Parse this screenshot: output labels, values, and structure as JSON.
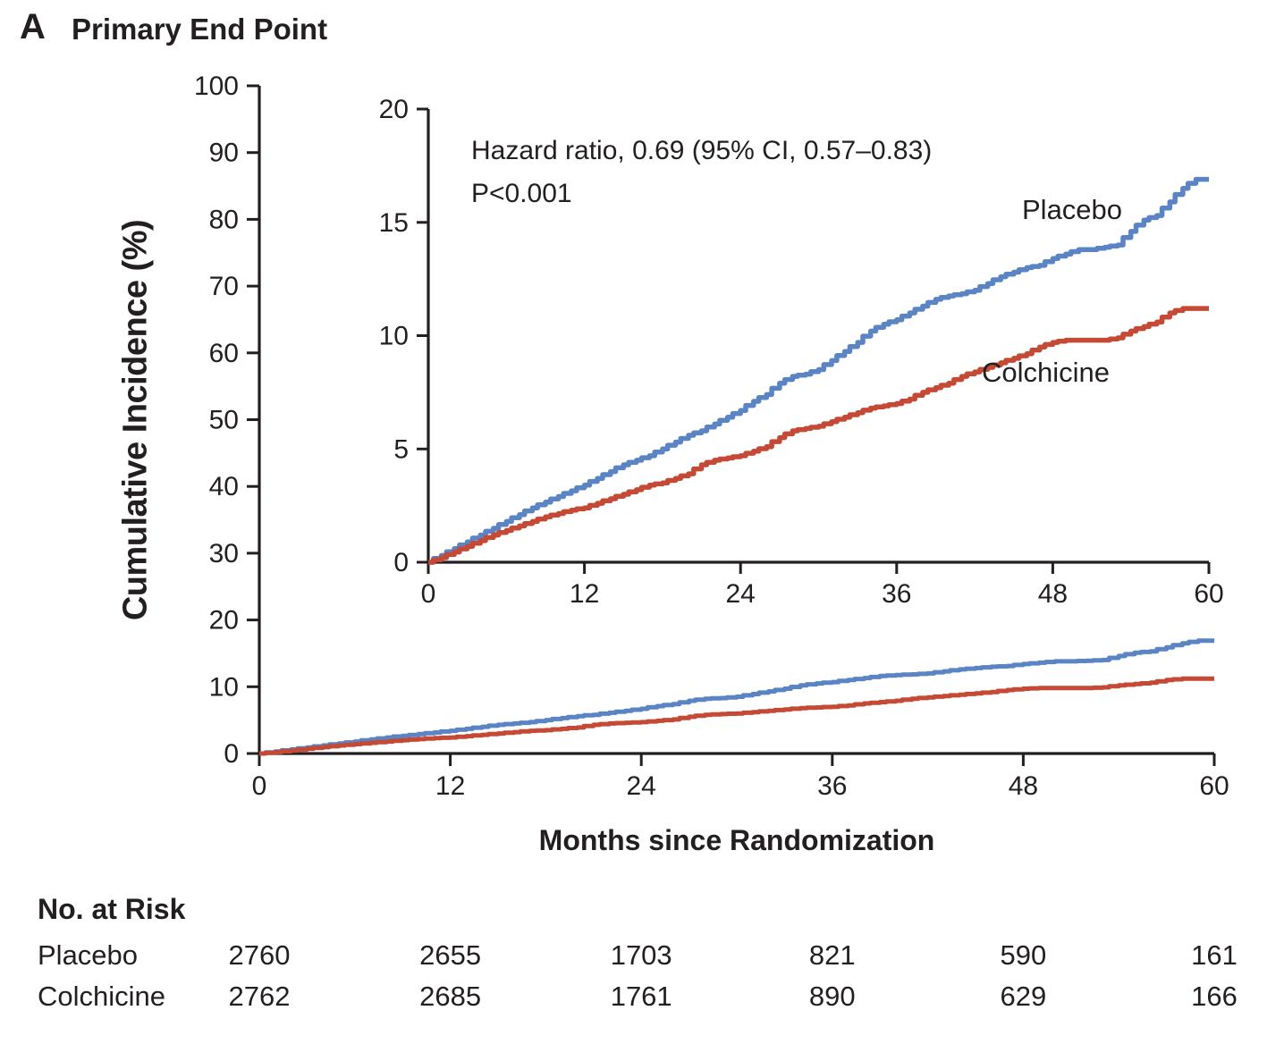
{
  "panel": {
    "label": "A",
    "title": "Primary End Point"
  },
  "colors": {
    "axis": "#231f20",
    "background": "#ffffff",
    "placebo": "#5a84c4",
    "colchicine": "#c44a35"
  },
  "risk_table": {
    "header": "No. at Risk",
    "months": [
      0,
      12,
      24,
      36,
      48,
      60
    ],
    "rows": [
      {
        "label": "Placebo",
        "values": [
          2760,
          2655,
          1703,
          821,
          590,
          161
        ]
      },
      {
        "label": "Colchicine",
        "values": [
          2762,
          2685,
          1761,
          890,
          629,
          166
        ]
      }
    ]
  },
  "chart_data": {
    "type": "line",
    "step": true,
    "title": "Primary End Point",
    "xlabel": "Months since Randomization",
    "ylabel": "Cumulative Incidence (%)",
    "legend_position": "inline-labels",
    "grid": false,
    "annotations": [
      "Hazard ratio, 0.69 (95% CI, 0.57–0.83)",
      "P<0.001"
    ],
    "main_axis": {
      "xlim": [
        0,
        60
      ],
      "ylim": [
        0,
        100
      ],
      "x_ticks": [
        0,
        12,
        24,
        36,
        48,
        60
      ],
      "y_ticks": [
        0,
        10,
        20,
        30,
        40,
        50,
        60,
        70,
        80,
        90,
        100
      ]
    },
    "inset_axis": {
      "xlim": [
        0,
        60
      ],
      "ylim": [
        0,
        20
      ],
      "x_ticks": [
        0,
        12,
        24,
        36,
        48,
        60
      ],
      "y_ticks": [
        0,
        5,
        10,
        15,
        20
      ]
    },
    "x_months": [
      0,
      1,
      2,
      3,
      4,
      5,
      6,
      7,
      8,
      9,
      10,
      11,
      12,
      13,
      14,
      15,
      16,
      17,
      18,
      19,
      20,
      21,
      22,
      23,
      24,
      25,
      26,
      27,
      28,
      29,
      30,
      31,
      32,
      33,
      34,
      35,
      36,
      37,
      38,
      39,
      40,
      41,
      42,
      43,
      44,
      45,
      46,
      47,
      48,
      49,
      50,
      51,
      52,
      53,
      54,
      55,
      56,
      57,
      58,
      59,
      60
    ],
    "series": [
      {
        "name": "Placebo",
        "color": "#5a84c4",
        "values": [
          0,
          0.3,
          0.6,
          0.9,
          1.2,
          1.5,
          1.8,
          2.1,
          2.4,
          2.65,
          2.9,
          3.15,
          3.4,
          3.7,
          4.0,
          4.3,
          4.5,
          4.7,
          5.0,
          5.3,
          5.6,
          5.8,
          6.1,
          6.4,
          6.7,
          7.1,
          7.4,
          7.9,
          8.2,
          8.3,
          8.5,
          8.9,
          9.3,
          9.7,
          10.2,
          10.5,
          10.7,
          11.0,
          11.3,
          11.6,
          11.75,
          11.85,
          12.0,
          12.3,
          12.6,
          12.8,
          13.0,
          13.1,
          13.4,
          13.6,
          13.8,
          13.8,
          13.9,
          14.0,
          14.6,
          15.1,
          15.3,
          15.9,
          16.5,
          16.9,
          16.9
        ]
      },
      {
        "name": "Colchicine",
        "color": "#c44a35",
        "values": [
          0,
          0.2,
          0.45,
          0.7,
          0.95,
          1.2,
          1.4,
          1.6,
          1.8,
          2.0,
          2.15,
          2.3,
          2.4,
          2.6,
          2.8,
          3.0,
          3.2,
          3.4,
          3.5,
          3.7,
          3.9,
          4.3,
          4.5,
          4.6,
          4.7,
          4.9,
          5.1,
          5.5,
          5.8,
          5.9,
          6.0,
          6.2,
          6.4,
          6.6,
          6.8,
          6.9,
          7.0,
          7.2,
          7.5,
          7.7,
          7.9,
          8.2,
          8.4,
          8.6,
          8.8,
          9.0,
          9.2,
          9.5,
          9.7,
          9.8,
          9.8,
          9.8,
          9.8,
          9.9,
          10.2,
          10.4,
          10.6,
          11.0,
          11.2,
          11.2,
          11.2
        ]
      }
    ]
  }
}
